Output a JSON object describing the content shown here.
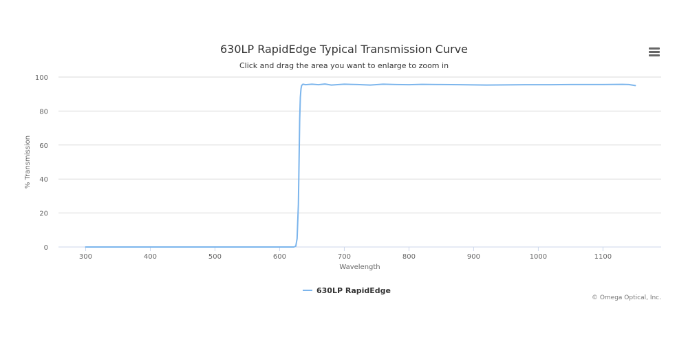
{
  "title": "630LP RapidEdge Typical Transmission Curve",
  "subtitle": "Click and drag the area you want to enlarge to zoom in",
  "credits": "© Omega Optical, Inc.",
  "menu_icon": "hamburger-menu-icon",
  "chart_data": {
    "type": "line",
    "title": "630LP RapidEdge Typical Transmission Curve",
    "subtitle": "Click and drag the area you want to enlarge to zoom in",
    "xlabel": "Wavelength",
    "ylabel": "% Transmission",
    "xlim": [
      258,
      1190
    ],
    "ylim": [
      0,
      100
    ],
    "xticks": [
      300,
      400,
      500,
      600,
      700,
      800,
      900,
      1000,
      1100
    ],
    "yticks": [
      0,
      20,
      40,
      60,
      80,
      100
    ],
    "grid": true,
    "legend_position": "bottom-center",
    "series": [
      {
        "name": "630LP RapidEdge",
        "color": "#7cb5ec",
        "x": [
          300,
          400,
          500,
          600,
          622,
          625,
          627,
          629,
          630,
          631,
          632,
          633,
          634,
          636,
          640,
          650,
          660,
          670,
          680,
          700,
          720,
          740,
          760,
          780,
          800,
          820,
          850,
          880,
          900,
          920,
          950,
          980,
          1000,
          1020,
          1050,
          1080,
          1100,
          1130,
          1140,
          1150
        ],
        "y": [
          0,
          0,
          0,
          0,
          0,
          0.5,
          5,
          25,
          50,
          75,
          88,
          93,
          95,
          95.8,
          95.5,
          95.8,
          95.5,
          95.9,
          95.3,
          95.8,
          95.6,
          95.3,
          95.8,
          95.6,
          95.5,
          95.7,
          95.6,
          95.5,
          95.4,
          95.3,
          95.4,
          95.5,
          95.5,
          95.5,
          95.6,
          95.6,
          95.6,
          95.7,
          95.6,
          95.0
        ]
      }
    ]
  }
}
